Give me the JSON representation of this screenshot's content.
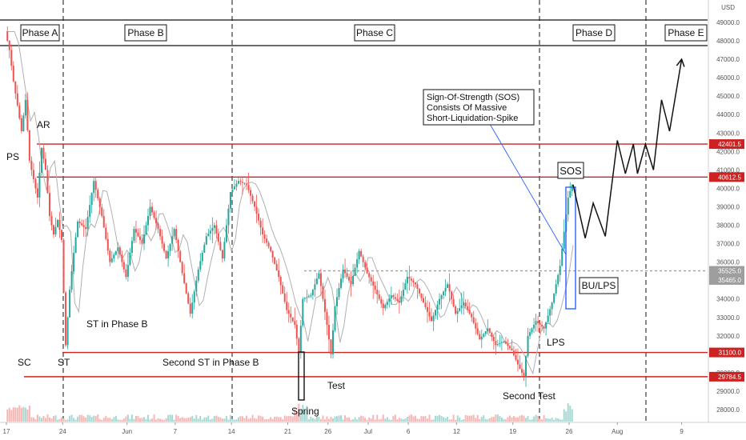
{
  "colors": {
    "up": "#26a69a",
    "down": "#ef5350",
    "level": "#cc2222",
    "box": "#2962ff",
    "arrow": "#111111",
    "grey_level": "#9e9e9e"
  },
  "axis": {
    "currency": "USD"
  },
  "chart_data": {
    "type": "line",
    "title": "",
    "xlabel": "",
    "ylabel": "USD",
    "ylim": [
      27600,
      49500
    ],
    "price_ticks": [
      28000,
      29000,
      30000,
      31000,
      32000,
      33000,
      34000,
      35000,
      36000,
      37000,
      38000,
      39000,
      40000,
      41000,
      42000,
      43000,
      44000,
      45000,
      46000,
      47000,
      48000,
      49000
    ],
    "x_ticks": [
      {
        "day": 0,
        "label": "17"
      },
      {
        "day": 7,
        "label": "24"
      },
      {
        "day": 15,
        "label": "Jun"
      },
      {
        "day": 21,
        "label": "7"
      },
      {
        "day": 28,
        "label": "14"
      },
      {
        "day": 35,
        "label": "21"
      },
      {
        "day": 40,
        "label": "26"
      },
      {
        "day": 45,
        "label": "Jul"
      },
      {
        "day": 50,
        "label": "6"
      },
      {
        "day": 56,
        "label": "12"
      },
      {
        "day": 63,
        "label": "19"
      },
      {
        "day": 70,
        "label": "26"
      },
      {
        "day": 76,
        "label": "Aug"
      },
      {
        "day": 84,
        "label": "9"
      }
    ],
    "price_path": [
      [
        0,
        48500
      ],
      [
        0.5,
        47500
      ],
      [
        1,
        45800
      ],
      [
        1.5,
        44500
      ],
      [
        2,
        43100
      ],
      [
        2.5,
        44800
      ],
      [
        3,
        41500
      ],
      [
        3.5,
        40500
      ],
      [
        4,
        39500
      ],
      [
        4.5,
        42200
      ],
      [
        5,
        41000
      ],
      [
        5.5,
        38500
      ],
      [
        6,
        37500
      ],
      [
        6.5,
        38300
      ],
      [
        7,
        37200
      ],
      [
        7.5,
        31500
      ],
      [
        8,
        34500
      ],
      [
        8.5,
        36500
      ],
      [
        9,
        38200
      ],
      [
        10,
        37800
      ],
      [
        11,
        40400
      ],
      [
        12,
        38500
      ],
      [
        13,
        36000
      ],
      [
        14,
        36800
      ],
      [
        15,
        35200
      ],
      [
        16,
        37800
      ],
      [
        17,
        37000
      ],
      [
        18,
        39000
      ],
      [
        19,
        37800
      ],
      [
        20,
        36200
      ],
      [
        21,
        37800
      ],
      [
        22,
        35400
      ],
      [
        23,
        33200
      ],
      [
        24,
        35600
      ],
      [
        25,
        37400
      ],
      [
        26,
        38000
      ],
      [
        27,
        36200
      ],
      [
        28,
        39800
      ],
      [
        29,
        40400
      ],
      [
        30,
        40200
      ],
      [
        31,
        39000
      ],
      [
        32,
        37500
      ],
      [
        33,
        36600
      ],
      [
        34,
        35200
      ],
      [
        35,
        33400
      ],
      [
        36,
        32600
      ],
      [
        36.5,
        31100
      ],
      [
        37,
        34000
      ],
      [
        38,
        34200
      ],
      [
        39,
        35400
      ],
      [
        40,
        32600
      ],
      [
        40.5,
        31000
      ],
      [
        41,
        33600
      ],
      [
        42,
        35600
      ],
      [
        43,
        34800
      ],
      [
        44,
        36600
      ],
      [
        45,
        35400
      ],
      [
        46,
        34500
      ],
      [
        47,
        33500
      ],
      [
        48,
        34200
      ],
      [
        49,
        33800
      ],
      [
        50,
        35200
      ],
      [
        51,
        34800
      ],
      [
        52,
        33800
      ],
      [
        53,
        32800
      ],
      [
        54,
        34000
      ],
      [
        55,
        34800
      ],
      [
        56,
        33200
      ],
      [
        57,
        33800
      ],
      [
        58,
        33000
      ],
      [
        59,
        31800
      ],
      [
        60,
        32400
      ],
      [
        61,
        31500
      ],
      [
        62,
        31700
      ],
      [
        63,
        31200
      ],
      [
        64,
        30200
      ],
      [
        64.5,
        29800
      ],
      [
        65,
        32000
      ],
      [
        66,
        32800
      ],
      [
        67,
        32400
      ],
      [
        68,
        33800
      ],
      [
        69,
        35800
      ],
      [
        70,
        39500
      ],
      [
        70.5,
        40200
      ]
    ],
    "key_levels": [
      42401.5,
      40612.5,
      35525.0,
      35465.0,
      31100.0,
      29784.5
    ],
    "labeled_levels": [
      {
        "price": 42401.5,
        "label": "42401.5"
      },
      {
        "price": 40612.5,
        "label": "40612.5"
      },
      {
        "price": 35525.0,
        "label": "35525.0"
      },
      {
        "price": 35465.0,
        "label": "35465.0"
      },
      {
        "price": 31100.0,
        "label": "31100.0"
      },
      {
        "price": 29784.5,
        "label": "29784.5"
      }
    ],
    "projection": [
      [
        70.5,
        40200
      ],
      [
        72,
        37300
      ],
      [
        73,
        39200
      ],
      [
        74.5,
        37400
      ],
      [
        76,
        42600
      ],
      [
        77,
        40800
      ],
      [
        78,
        42400
      ],
      [
        78.5,
        40800
      ],
      [
        79.5,
        42400
      ],
      [
        80.5,
        41000
      ],
      [
        81.5,
        44800
      ],
      [
        82.5,
        43100
      ],
      [
        84,
        47000
      ]
    ],
    "phases": [
      "Phase A",
      "Phase B",
      "Phase C",
      "Phase D",
      "Phase E"
    ],
    "annotations": {
      "ps": "PS",
      "ar": "AR",
      "sc": "SC",
      "st": "ST",
      "st_phase_b": "ST in Phase B",
      "second_st": "Second ST in Phase B",
      "spring": "Spring",
      "test": "Test",
      "second_test": "Second Test",
      "lps": "LPS",
      "sos": "SOS",
      "bu_lps": "BU/LPS",
      "sos_note_1": "Sign-Of-Strength (SOS)",
      "sos_note_2": "Consists Of Massive",
      "sos_note_3": "Short-Liquidation-Spike"
    }
  }
}
